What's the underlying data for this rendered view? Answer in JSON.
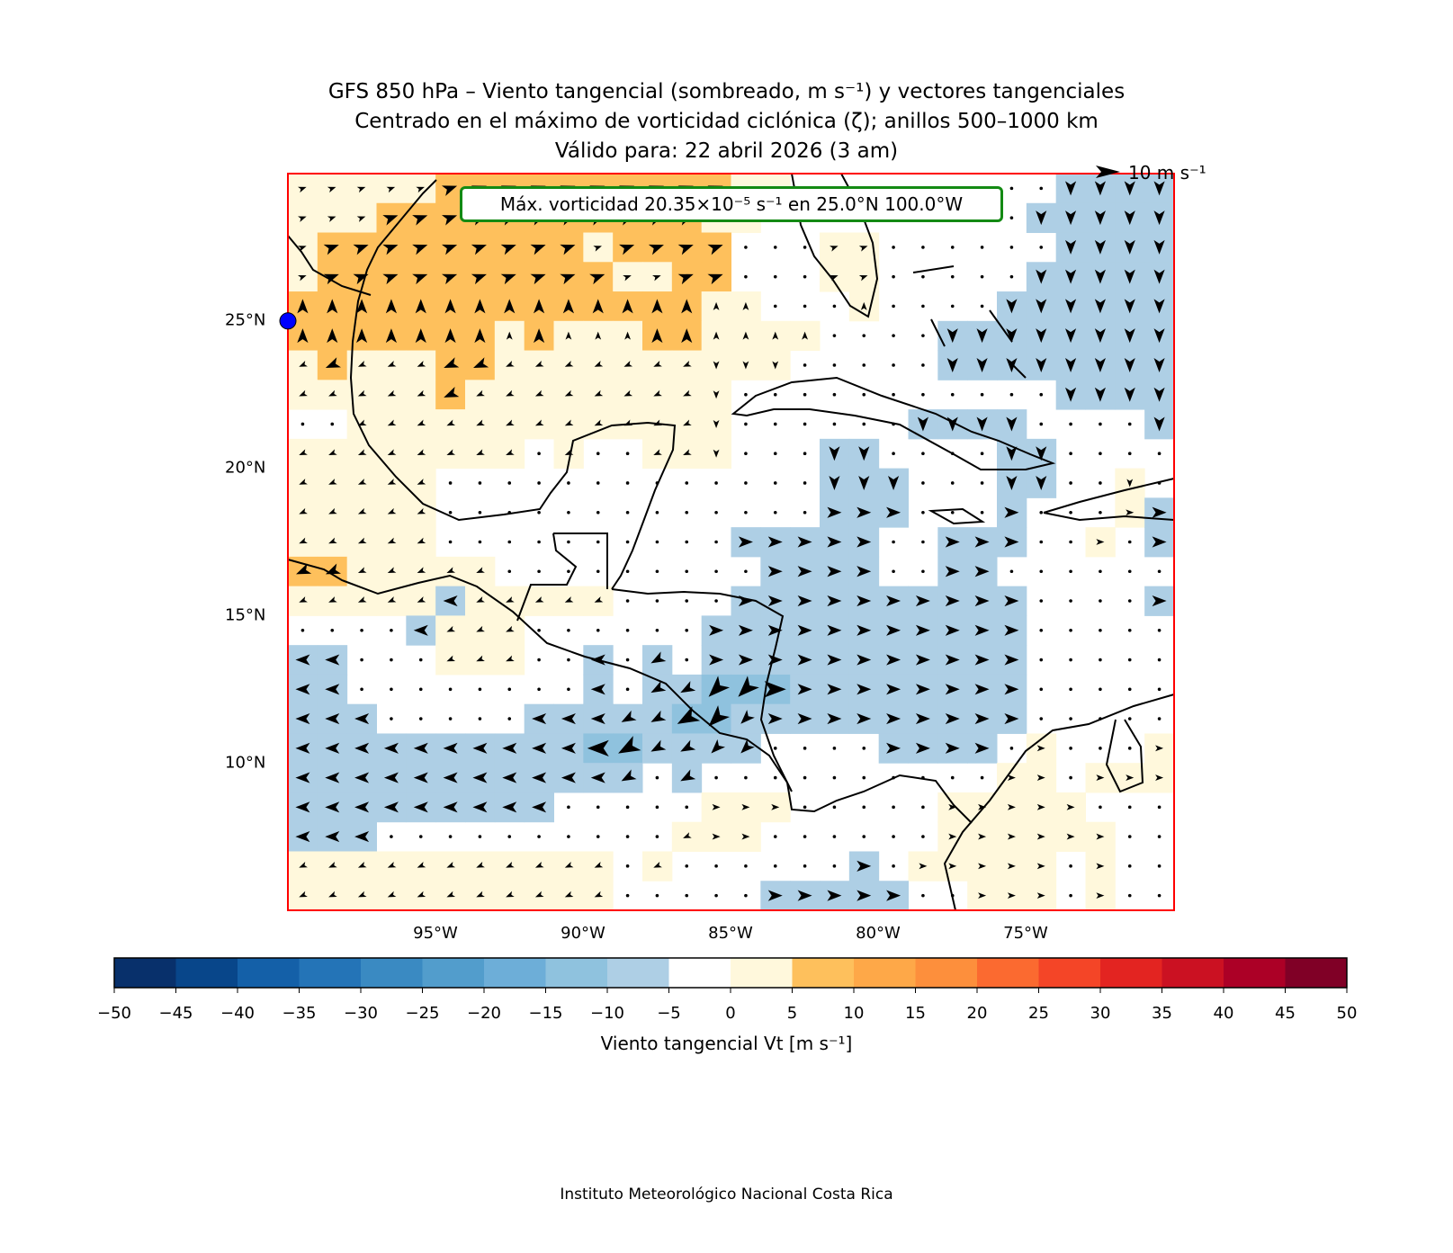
{
  "title": {
    "line1": "GFS 850 hPa – Viento tangencial (sombreado, m s⁻¹) y vectores tangenciales",
    "line2": "Centrado en el máximo de vorticidad ciclónica (ζ); anillos 500–1000 km",
    "line3": "Válido para: 22 abril 2026 (3 am)"
  },
  "annotation": "Máx. vorticidad 20.35×10⁻⁵ s⁻¹ en 25.0°N 100.0°W",
  "quiver_key": {
    "label": "10 m s⁻¹",
    "value": 10
  },
  "credit": "Instituto Meteorológico Nacional Costa Rica",
  "colors": {
    "frame": "#ff0000",
    "annotation_border": "#138a13",
    "center_marker": "#0000ff",
    "coast": "#000000"
  },
  "chart_data": {
    "type": "heatmap",
    "extent": {
      "lon": [
        -100,
        -70
      ],
      "lat": [
        5,
        30
      ]
    },
    "center": {
      "lat": 25.0,
      "lon": -100.0
    },
    "x_ticks": [
      {
        "value": -95,
        "label": "95°W"
      },
      {
        "value": -90,
        "label": "90°W"
      },
      {
        "value": -85,
        "label": "85°W"
      },
      {
        "value": -80,
        "label": "80°W"
      },
      {
        "value": -75,
        "label": "75°W"
      }
    ],
    "y_ticks": [
      {
        "value": 25,
        "label": "25°N"
      },
      {
        "value": 20,
        "label": "20°N"
      },
      {
        "value": 15,
        "label": "15°N"
      },
      {
        "value": 10,
        "label": "10°N"
      }
    ],
    "grid_resolution_deg": 1,
    "shading_codes": {
      "B": [
        -15,
        -10
      ],
      "b": [
        -10,
        -5
      ],
      "0": [
        -5,
        0
      ],
      "y": [
        0,
        5
      ],
      "o": [
        5,
        10
      ],
      "O": [
        10,
        15
      ]
    },
    "shading_rows_north_to_south": [
      "yyyyyooooooooooyy000000000bbbbb",
      "yyyoooooooooooyy000000000bbbbb",
      "yoooooooooyoooo000yy000000bbbb",
      "yooooooooooyyoo000yy00000bbbbb",
      "ooooooooooooooyy000y0000bbbbbb",
      "oooooooyoyyyooyyyy0000bbbbbbbb",
      "yoyyyooyyyyyyyyyy00000bbbbbbbb",
      "yyyyyoyyyyyyyyy00000000000bbbb",
      "00yyyyyyyyyyyyy000000bbbb0000b",
      "yyyyyyyy0y00yyy000bb0000bb0000",
      "yyyyy0000000000000bbb000bb00y0",
      "yyyyy0000000000000bbb000b000yb",
      "yyyyy0000000000bbbbb00bbb00y0b",
      "ooyyyyy000000000bbbb00bb000000",
      "yyyyybyyyyy0000bbbbbbbbbb0000b",
      "0000byyy000000bbbbbbbbbbb00000",
      "bb000yyy00b0b0bbbbbbbbbbb00000",
      "bb00000000b0bbBBBbbbbbbbb00000",
      "bbb00000bbbbbBBbbbbbbbbbb00000",
      "bbbbbbbbbbBBbbbb0000bbbb0y000y",
      "bbbbbbbbbbbb0b0000000000yy0yyy",
      "bbbbbbbbb00000yyy00000yyyyy000",
      "bbb0000000000yyy000000yyyyyy00",
      "yyyyyyyyyyy0y000000b0yyyyy0y00",
      "yyyyyyyyyyy00000bbbbb00yyy0y00"
    ],
    "colorbar": {
      "label": "Viento tangencial Vt [m s⁻¹]",
      "ticks": [
        "−50",
        "−45",
        "−40",
        "−35",
        "−30",
        "−25",
        "−20",
        "−15",
        "−10",
        "−5",
        "0",
        "5",
        "10",
        "15",
        "20",
        "25",
        "30",
        "35",
        "40",
        "45",
        "50"
      ],
      "colors": [
        "#08306b",
        "#08468a",
        "#1460a8",
        "#2474b7",
        "#3a8ac2",
        "#529dcc",
        "#6daed8",
        "#8fc2de",
        "#aecfe5",
        "#ffffff",
        "#fff8dc",
        "#fec05c",
        "#fea848",
        "#fd8f3c",
        "#fb6a30",
        "#f44527",
        "#e32421",
        "#cb1122",
        "#ac0026",
        "#800026"
      ]
    }
  }
}
